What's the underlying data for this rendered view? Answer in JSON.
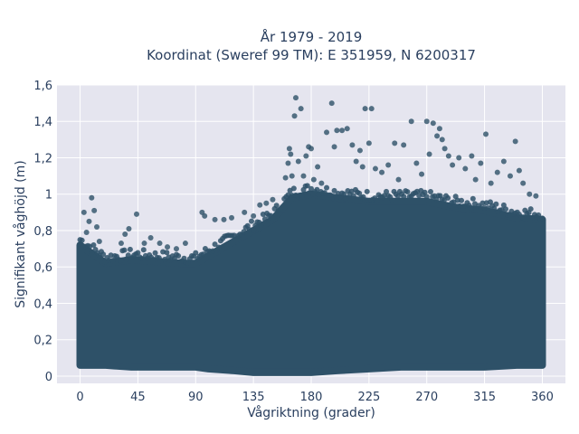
{
  "chart_data": {
    "type": "scatter",
    "title_line1": "År 1979 - 2019",
    "title_line2": "Koordinat (Sweref 99 TM): E 351959, N 6200317",
    "xlabel": "Vågriktning (grader)",
    "ylabel": "Signifikant våghöjd (m)",
    "xlim": [
      -18,
      378
    ],
    "ylim": [
      -0.04,
      1.6
    ],
    "x_ticks": [
      0,
      45,
      90,
      135,
      180,
      225,
      270,
      315,
      360
    ],
    "x_tick_labels": [
      "0",
      "45",
      "90",
      "135",
      "180",
      "225",
      "270",
      "315",
      "360"
    ],
    "y_ticks": [
      0,
      0.2,
      0.4,
      0.6,
      0.8,
      1.0,
      1.2,
      1.4,
      1.6
    ],
    "y_tick_labels": [
      "0",
      "0,2",
      "0,4",
      "0,6",
      "0,8",
      "1",
      "1,2",
      "1,4",
      "1,6"
    ],
    "grid": true,
    "colors": {
      "marker": "#2e5168",
      "plot_bg": "#e5e5ef",
      "grid": "#ffffff",
      "text": "#2a3f5f"
    },
    "envelope": {
      "x": [
        0,
        20,
        40,
        60,
        80,
        90,
        100,
        120,
        135,
        150,
        165,
        180,
        200,
        225,
        250,
        270,
        290,
        315,
        340,
        360
      ],
      "y_max": [
        0.72,
        0.62,
        0.64,
        0.63,
        0.62,
        0.62,
        0.66,
        0.74,
        0.8,
        0.86,
        0.98,
        1.0,
        0.98,
        0.96,
        0.96,
        0.96,
        0.93,
        0.91,
        0.87,
        0.86
      ],
      "y_min": [
        0.06,
        0.06,
        0.05,
        0.05,
        0.05,
        0.05,
        0.04,
        0.03,
        0.02,
        0.02,
        0.02,
        0.02,
        0.03,
        0.04,
        0.05,
        0.05,
        0.05,
        0.05,
        0.06,
        0.06
      ]
    },
    "points": [
      [
        3,
        0.9
      ],
      [
        7,
        0.85
      ],
      [
        9,
        0.98
      ],
      [
        11,
        0.91
      ],
      [
        13,
        0.82
      ],
      [
        5,
        0.79
      ],
      [
        15,
        0.74
      ],
      [
        32,
        0.73
      ],
      [
        35,
        0.78
      ],
      [
        38,
        0.81
      ],
      [
        44,
        0.89
      ],
      [
        50,
        0.73
      ],
      [
        55,
        0.76
      ],
      [
        62,
        0.73
      ],
      [
        68,
        0.71
      ],
      [
        75,
        0.7
      ],
      [
        82,
        0.73
      ],
      [
        95,
        0.9
      ],
      [
        97,
        0.88
      ],
      [
        105,
        0.86
      ],
      [
        112,
        0.86
      ],
      [
        118,
        0.87
      ],
      [
        128,
        0.9
      ],
      [
        135,
        0.88
      ],
      [
        140,
        0.94
      ],
      [
        145,
        0.95
      ],
      [
        150,
        0.97
      ],
      [
        160,
        1.09
      ],
      [
        162,
        1.17
      ],
      [
        163,
        1.25
      ],
      [
        164,
        1.22
      ],
      [
        165,
        1.1
      ],
      [
        167,
        1.43
      ],
      [
        168,
        1.53
      ],
      [
        170,
        1.18
      ],
      [
        172,
        1.47
      ],
      [
        174,
        1.1
      ],
      [
        176,
        1.21
      ],
      [
        178,
        1.26
      ],
      [
        180,
        1.25
      ],
      [
        182,
        1.08
      ],
      [
        185,
        1.15
      ],
      [
        188,
        1.06
      ],
      [
        192,
        1.34
      ],
      [
        196,
        1.5
      ],
      [
        198,
        1.26
      ],
      [
        200,
        1.35
      ],
      [
        204,
        1.35
      ],
      [
        208,
        1.36
      ],
      [
        212,
        1.27
      ],
      [
        215,
        1.18
      ],
      [
        218,
        1.24
      ],
      [
        220,
        1.15
      ],
      [
        222,
        1.47
      ],
      [
        225,
        1.28
      ],
      [
        227,
        1.47
      ],
      [
        230,
        1.14
      ],
      [
        235,
        1.12
      ],
      [
        240,
        1.16
      ],
      [
        245,
        1.28
      ],
      [
        248,
        1.08
      ],
      [
        252,
        1.27
      ],
      [
        258,
        1.4
      ],
      [
        262,
        1.17
      ],
      [
        266,
        1.11
      ],
      [
        270,
        1.4
      ],
      [
        272,
        1.22
      ],
      [
        275,
        1.39
      ],
      [
        278,
        1.32
      ],
      [
        280,
        1.36
      ],
      [
        282,
        1.3
      ],
      [
        284,
        1.25
      ],
      [
        287,
        1.21
      ],
      [
        290,
        1.16
      ],
      [
        295,
        1.2
      ],
      [
        300,
        1.14
      ],
      [
        305,
        1.21
      ],
      [
        308,
        1.08
      ],
      [
        312,
        1.17
      ],
      [
        316,
        1.33
      ],
      [
        320,
        1.06
      ],
      [
        325,
        1.12
      ],
      [
        330,
        1.18
      ],
      [
        335,
        1.1
      ],
      [
        339,
        1.29
      ],
      [
        342,
        1.13
      ],
      [
        345,
        1.06
      ],
      [
        350,
        1.0
      ],
      [
        355,
        0.99
      ]
    ]
  }
}
